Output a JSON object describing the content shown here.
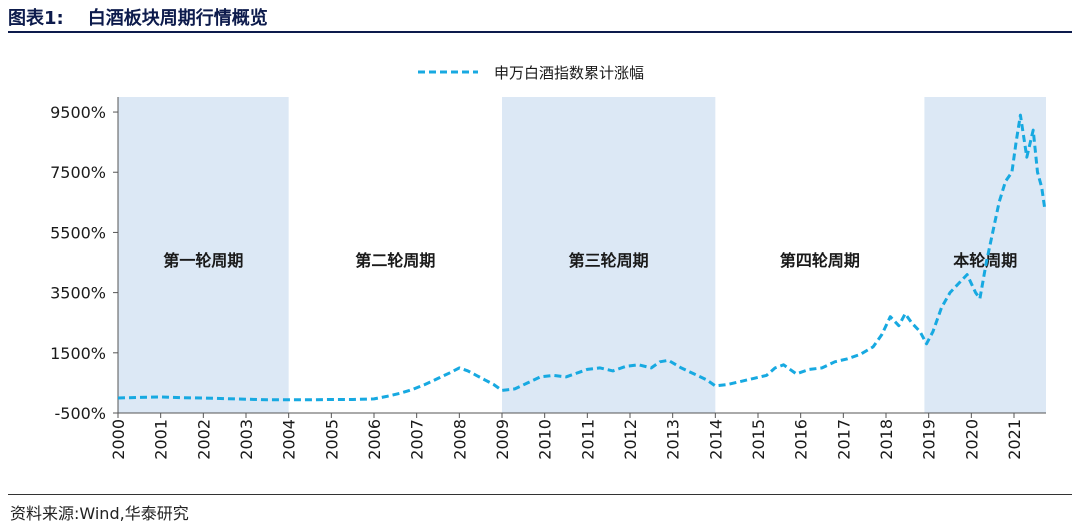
{
  "header": {
    "figure_no": "图表1:",
    "title": "白酒板块周期行情概览"
  },
  "source": "资料来源:Wind,华泰研究",
  "chart_data": {
    "type": "line",
    "title": "白酒板块周期行情概览",
    "xlabel": "",
    "ylabel": "",
    "legend": {
      "position": "top",
      "entries": [
        "申万白酒指数累计涨幅"
      ]
    },
    "colors": {
      "line": "#17a9e1",
      "band": "#dce8f5"
    },
    "ylim": [
      -500,
      10000
    ],
    "xlim": [
      2000,
      2021.75
    ],
    "yticks": [
      -500,
      1500,
      3500,
      5500,
      7500,
      9500
    ],
    "ytick_labels": [
      "-500%",
      "1500%",
      "3500%",
      "5500%",
      "7500%",
      "9500%"
    ],
    "xticks": [
      "2000",
      "2001",
      "2002",
      "2003",
      "2004",
      "2005",
      "2006",
      "2007",
      "2008",
      "2009",
      "2010",
      "2011",
      "2012",
      "2013",
      "2014",
      "2015",
      "2016",
      "2017",
      "2018",
      "2019",
      "2020",
      "2021"
    ],
    "periods": [
      {
        "label": "第一轮周期",
        "start": 2000,
        "end": 2004,
        "shaded": true
      },
      {
        "label": "第二轮周期",
        "start": 2004,
        "end": 2009,
        "shaded": false
      },
      {
        "label": "第三轮周期",
        "start": 2009,
        "end": 2014,
        "shaded": true
      },
      {
        "label": "第四轮周期",
        "start": 2014,
        "end": 2018.9,
        "shaded": false
      },
      {
        "label": "本轮周期",
        "start": 2018.9,
        "end": 2021.75,
        "shaded": true
      }
    ],
    "series": [
      {
        "name": "申万白酒指数累计涨幅",
        "x": [
          2000,
          2000.5,
          2001,
          2001.5,
          2002,
          2002.5,
          2003,
          2003.5,
          2004,
          2004.5,
          2005,
          2005.5,
          2006,
          2006.3,
          2006.6,
          2006.9,
          2007.2,
          2007.5,
          2007.8,
          2008.0,
          2008.2,
          2008.4,
          2008.6,
          2008.8,
          2009.0,
          2009.3,
          2009.6,
          2009.9,
          2010.2,
          2010.5,
          2010.8,
          2011.0,
          2011.3,
          2011.6,
          2011.9,
          2012.2,
          2012.5,
          2012.7,
          2012.9,
          2013.2,
          2013.5,
          2013.8,
          2014.0,
          2014.3,
          2014.6,
          2014.9,
          2015.2,
          2015.4,
          2015.6,
          2015.9,
          2016.2,
          2016.5,
          2016.8,
          2017.1,
          2017.4,
          2017.7,
          2017.9,
          2018.1,
          2018.3,
          2018.45,
          2018.6,
          2018.8,
          2018.95,
          2019.1,
          2019.3,
          2019.5,
          2019.7,
          2019.9,
          2020.1,
          2020.2,
          2020.35,
          2020.5,
          2020.65,
          2020.8,
          2020.95,
          2021.05,
          2021.15,
          2021.3,
          2021.45,
          2021.55,
          2021.65,
          2021.72
        ],
        "values": [
          0,
          20,
          30,
          10,
          0,
          -20,
          -40,
          -60,
          -60,
          -60,
          -50,
          -50,
          -30,
          50,
          150,
          280,
          450,
          650,
          850,
          1000,
          900,
          750,
          600,
          450,
          250,
          300,
          500,
          700,
          750,
          700,
          850,
          950,
          1000,
          900,
          1050,
          1100,
          1000,
          1200,
          1250,
          1000,
          800,
          600,
          400,
          450,
          550,
          650,
          750,
          1000,
          1100,
          800,
          950,
          1000,
          1200,
          1300,
          1450,
          1700,
          2100,
          2700,
          2400,
          2800,
          2500,
          2200,
          1800,
          2200,
          3000,
          3500,
          3800,
          4100,
          3500,
          3300,
          4500,
          5500,
          6500,
          7200,
          7500,
          8500,
          9400,
          8000,
          8900,
          7500,
          7000,
          6300
        ]
      }
    ]
  }
}
